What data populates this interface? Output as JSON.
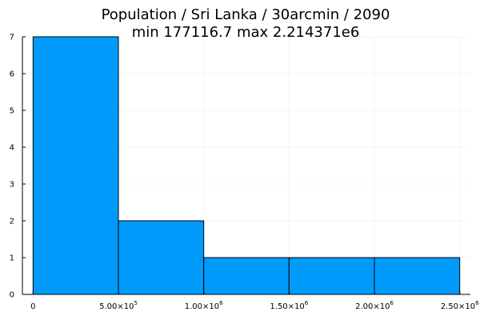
{
  "chart_data": {
    "type": "bar",
    "title_line1": "Population / Sri Lanka / 30arcmin / 2090",
    "title_line2": "min 177116.7  max 2.214371e6",
    "xlabel": "",
    "ylabel": "",
    "bins": [
      {
        "start": 0,
        "end": 500000,
        "count": 7
      },
      {
        "start": 500000,
        "end": 1000000,
        "count": 2
      },
      {
        "start": 1000000,
        "end": 1500000,
        "count": 1
      },
      {
        "start": 1500000,
        "end": 2000000,
        "count": 1
      },
      {
        "start": 2000000,
        "end": 2500000,
        "count": 1
      }
    ],
    "xlim": [
      -62500,
      2562500
    ],
    "ylim": [
      0,
      7
    ],
    "x_ticks": [
      {
        "value": 0,
        "mantissa": "0",
        "exponent": ""
      },
      {
        "value": 500000,
        "mantissa": "5.00×10",
        "exponent": "5"
      },
      {
        "value": 1000000,
        "mantissa": "1.00×10",
        "exponent": "6"
      },
      {
        "value": 1500000,
        "mantissa": "1.50×10",
        "exponent": "6"
      },
      {
        "value": 2000000,
        "mantissa": "2.00×10",
        "exponent": "6"
      },
      {
        "value": 2500000,
        "mantissa": "2.50×10",
        "exponent": "6"
      }
    ],
    "y_ticks": [
      0,
      1,
      2,
      3,
      4,
      5,
      6,
      7
    ],
    "grid": true,
    "legend": "none",
    "bar_color": "#009AFA",
    "bar_edge_color": "#000000"
  }
}
